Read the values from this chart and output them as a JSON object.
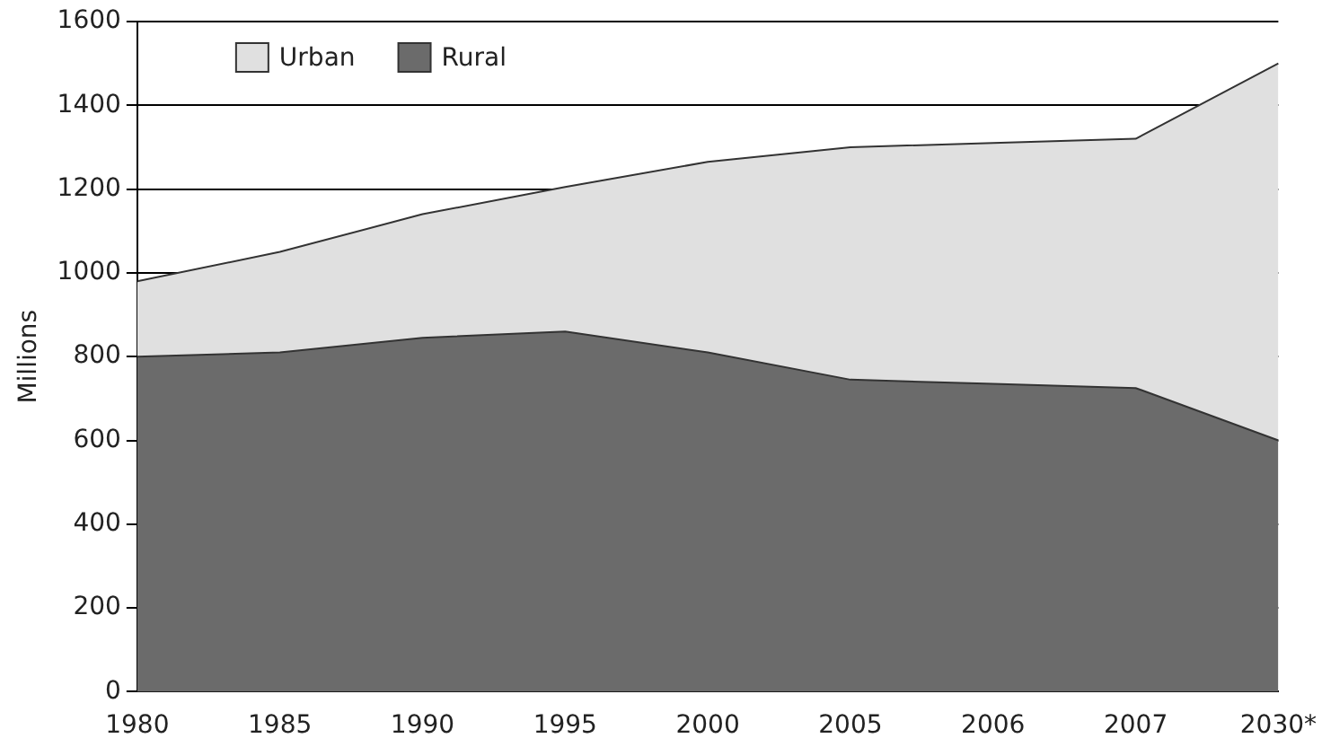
{
  "chart_data": {
    "type": "area",
    "stacked": true,
    "ylabel": "Millions",
    "categories": [
      "1980",
      "1985",
      "1990",
      "1995",
      "2000",
      "2005",
      "2006",
      "2007",
      "2030*"
    ],
    "series": [
      {
        "name": "Rural",
        "color": "#6b6b6b",
        "values": [
          800,
          810,
          845,
          860,
          810,
          745,
          735,
          725,
          600
        ]
      },
      {
        "name": "Urban",
        "color": "#e0e0e0",
        "values": [
          180,
          240,
          295,
          345,
          455,
          555,
          575,
          595,
          900
        ]
      }
    ],
    "ylim": [
      0,
      1600
    ],
    "yticks": [
      0,
      200,
      400,
      600,
      800,
      1000,
      1200,
      1400,
      1600
    ],
    "grid": "y",
    "legend": "top left"
  }
}
